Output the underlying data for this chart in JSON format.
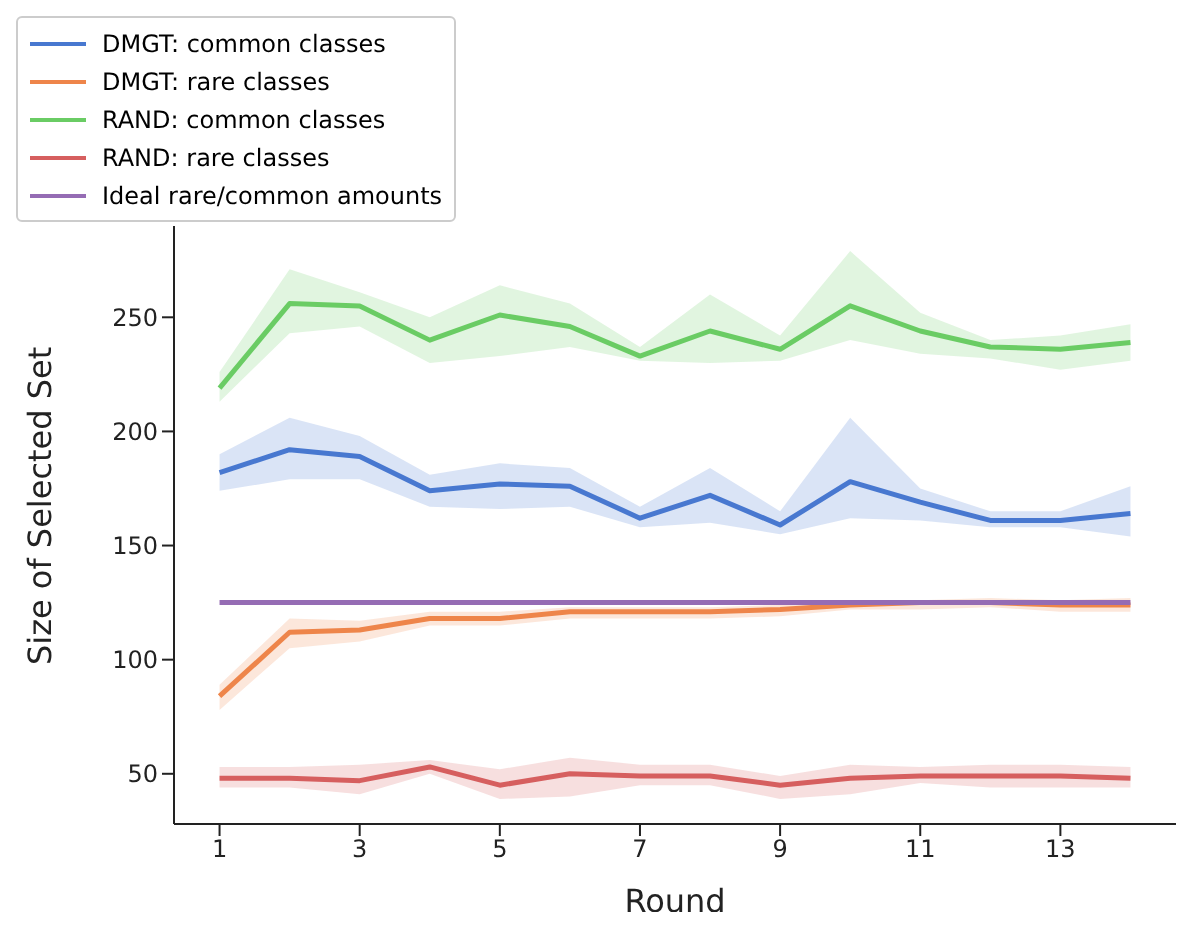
{
  "chart_data": {
    "type": "line",
    "xlabel": "Round",
    "ylabel": "Size of Selected Set",
    "x": [
      1,
      2,
      3,
      4,
      5,
      6,
      7,
      8,
      9,
      10,
      11,
      12,
      13,
      14
    ],
    "xlim": [
      0.35,
      14.65
    ],
    "xticks": [
      1,
      3,
      5,
      7,
      9,
      11,
      13
    ],
    "ylim": [
      28,
      290
    ],
    "yticks": [
      50,
      100,
      150,
      200,
      250
    ],
    "grid": false,
    "legend": "top left",
    "marker": "none",
    "line_style": "solid",
    "series": [
      {
        "name": "DMGT: common classes",
        "color": "#4878d0",
        "values": [
          182,
          192,
          189,
          174,
          177,
          176,
          162,
          172,
          159,
          178,
          169,
          161,
          161,
          164
        ],
        "lower": [
          174,
          179,
          179,
          167,
          166,
          167,
          158,
          160,
          155,
          162,
          161,
          158,
          158,
          154
        ],
        "upper": [
          190,
          206,
          198,
          181,
          186,
          184,
          167,
          184,
          165,
          206,
          175,
          165,
          165,
          176
        ]
      },
      {
        "name": "DMGT: rare classes",
        "color": "#ee854a",
        "values": [
          84,
          112,
          113,
          118,
          118,
          121,
          121,
          121,
          122,
          124,
          125,
          125,
          124,
          124
        ],
        "lower": [
          78,
          105,
          108,
          115,
          115,
          118,
          118,
          118,
          119,
          122,
          122,
          123,
          121,
          121
        ],
        "upper": [
          89,
          118,
          117,
          121,
          121,
          123,
          123,
          123,
          124,
          126,
          126,
          127,
          126,
          127
        ]
      },
      {
        "name": "RAND: common classes",
        "color": "#6acc64",
        "values": [
          219,
          256,
          255,
          240,
          251,
          246,
          233,
          244,
          236,
          255,
          244,
          237,
          236,
          239
        ],
        "lower": [
          213,
          243,
          246,
          230,
          233,
          237,
          231,
          230,
          231,
          240,
          234,
          232,
          227,
          231
        ],
        "upper": [
          226,
          271,
          261,
          250,
          264,
          256,
          237,
          260,
          242,
          279,
          252,
          240,
          242,
          247
        ]
      },
      {
        "name": "RAND: rare classes",
        "color": "#d65f5f",
        "values": [
          48,
          48,
          47,
          53,
          45,
          50,
          49,
          49,
          45,
          48,
          49,
          49,
          49,
          48
        ],
        "lower": [
          44,
          44,
          41,
          50,
          39,
          40,
          45,
          45,
          39,
          41,
          46,
          44,
          44,
          44
        ],
        "upper": [
          53,
          53,
          54,
          56,
          52,
          57,
          54,
          54,
          49,
          54,
          53,
          54,
          54,
          53
        ]
      },
      {
        "name": "Ideal rare/common amounts",
        "color": "#956cb4",
        "values": [
          125,
          125,
          125,
          125,
          125,
          125,
          125,
          125,
          125,
          125,
          125,
          125,
          125,
          125
        ]
      }
    ]
  }
}
